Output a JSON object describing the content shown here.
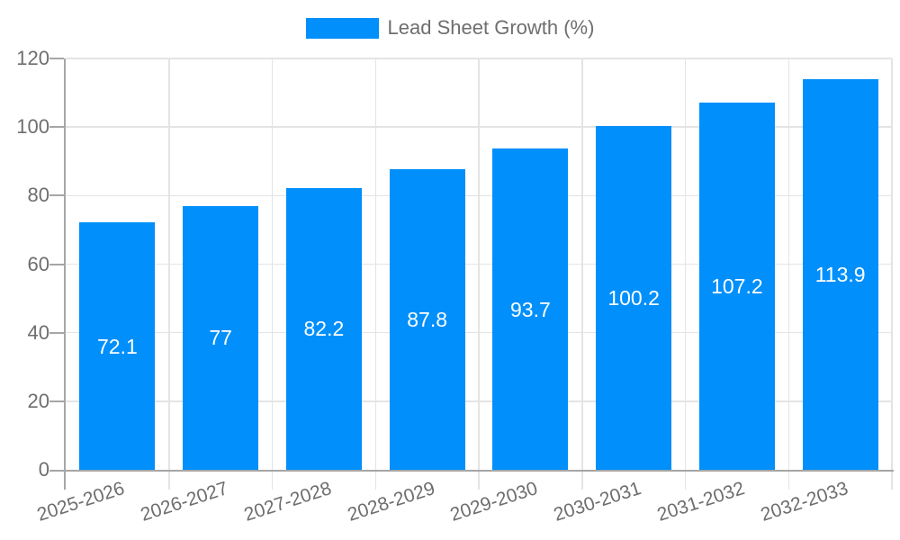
{
  "legend": {
    "label": "Lead Sheet Growth (%)"
  },
  "colors": {
    "bar": "#008FFB",
    "grid": "#E4E4E4",
    "axis": "#A6A6A6",
    "tick_label": "#6E6E6E",
    "legend_text": "#6E6E6E",
    "data_label": "#FFFFFF",
    "background": "#FFFFFF"
  },
  "chart_data": {
    "type": "bar",
    "title": "Lead Sheet Growth (%)",
    "categories": [
      "2025-2026",
      "2026-2027",
      "2027-2028",
      "2028-2029",
      "2029-2030",
      "2030-2031",
      "2031-2032",
      "2032-2033"
    ],
    "values": [
      72.1,
      77,
      82.2,
      87.8,
      93.7,
      100.2,
      107.2,
      113.9
    ],
    "value_labels": [
      "72.1",
      "77",
      "82.2",
      "87.8",
      "93.7",
      "100.2",
      "107.2",
      "113.9"
    ],
    "series_name": "Lead Sheet Growth (%)",
    "xlabel": "",
    "ylabel": "",
    "ylim": [
      0,
      120
    ],
    "yticks": [
      0,
      20,
      40,
      60,
      80,
      100,
      120
    ],
    "grid": true,
    "legend_position": "top",
    "data_label_position": "center"
  }
}
